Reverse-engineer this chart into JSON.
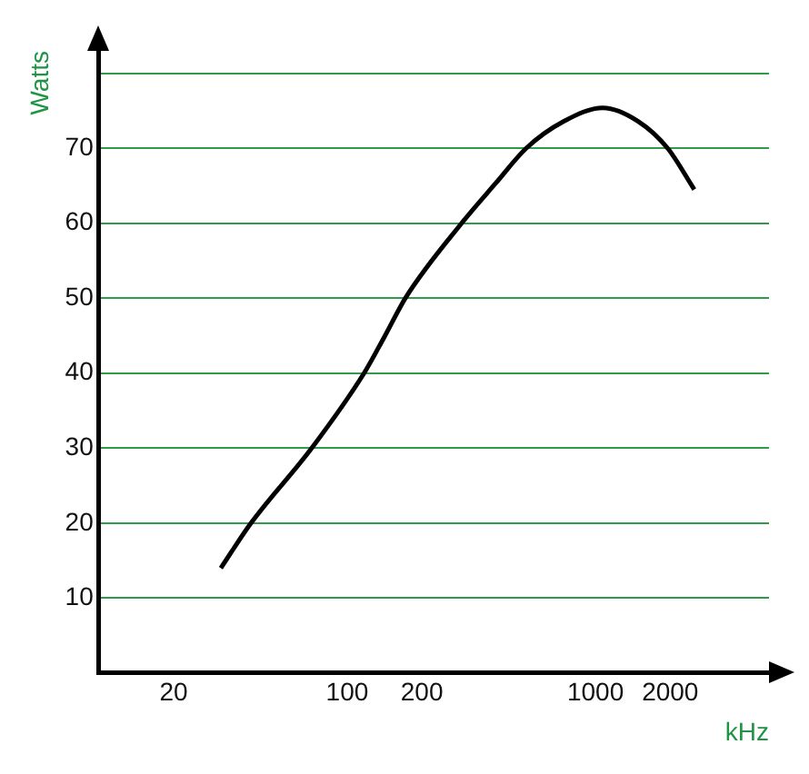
{
  "chart_data": {
    "type": "line",
    "xlabel": "kHz",
    "ylabel": "Watts",
    "log": "x",
    "x": [
      31,
      41,
      72,
      117,
      141,
      173,
      289,
      398,
      526,
      746,
      1071,
      1486,
      1954,
      2500
    ],
    "series": [
      {
        "color": "#000000",
        "values": [
          14,
          20,
          30,
          40,
          44.8,
          50.2,
          60,
          65.4,
          70,
          73.6,
          75.4,
          73.6,
          70,
          64.5
        ]
      }
    ],
    "xlim": [
      10,
      5000
    ],
    "xticks": [
      20,
      100,
      200,
      1000,
      2000
    ],
    "ylim": [
      0,
      83
    ],
    "yticks": [
      10,
      20,
      30,
      40,
      50,
      60,
      70,
      {
        "value": 80,
        "label": null
      }
    ],
    "grid": "y",
    "marker": "none",
    "line_style": "solid",
    "legend": false
  }
}
